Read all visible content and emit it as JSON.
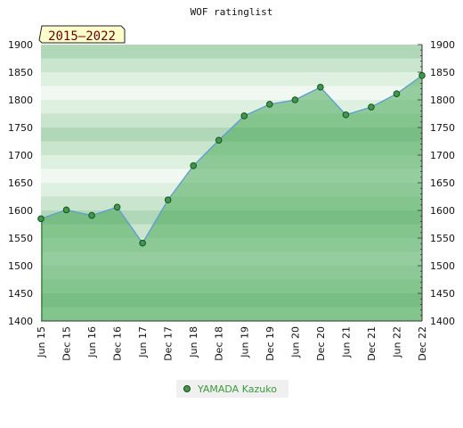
{
  "chart_data": {
    "type": "area",
    "title": "WOF ratinglist",
    "period_badge": "2015–2022",
    "categories": [
      "Jun 15",
      "Dec 15",
      "Jun 16",
      "Dec 16",
      "Jun 17",
      "Dec 17",
      "Jun 18",
      "Dec 18",
      "Jun 19",
      "Dec 19",
      "Jun 20",
      "Dec 20",
      "Jun 21",
      "Dec 21",
      "Jun 22",
      "Dec 22"
    ],
    "series": [
      {
        "name": "YAMADA Kazuko",
        "values": [
          1585,
          1601,
          1591,
          1606,
          1541,
          1619,
          1681,
          1727,
          1771,
          1792,
          1800,
          1823,
          1773,
          1787,
          1811,
          1844
        ]
      }
    ],
    "ylim": [
      1400,
      1900
    ],
    "yticks": [
      1400,
      1450,
      1500,
      1550,
      1600,
      1650,
      1700,
      1750,
      1800,
      1850,
      1900
    ],
    "grid": true,
    "legend_position": "bottom-center",
    "colors": {
      "line": "#5b9bd5",
      "area_fill": "#4aaa5a",
      "marker_fill": "#3c9a4c",
      "badge_bg": "#ffffcc",
      "badge_text": "#6a0000",
      "legend_text": "#3b9a3b",
      "legend_bg": "#f0f0f0"
    }
  }
}
